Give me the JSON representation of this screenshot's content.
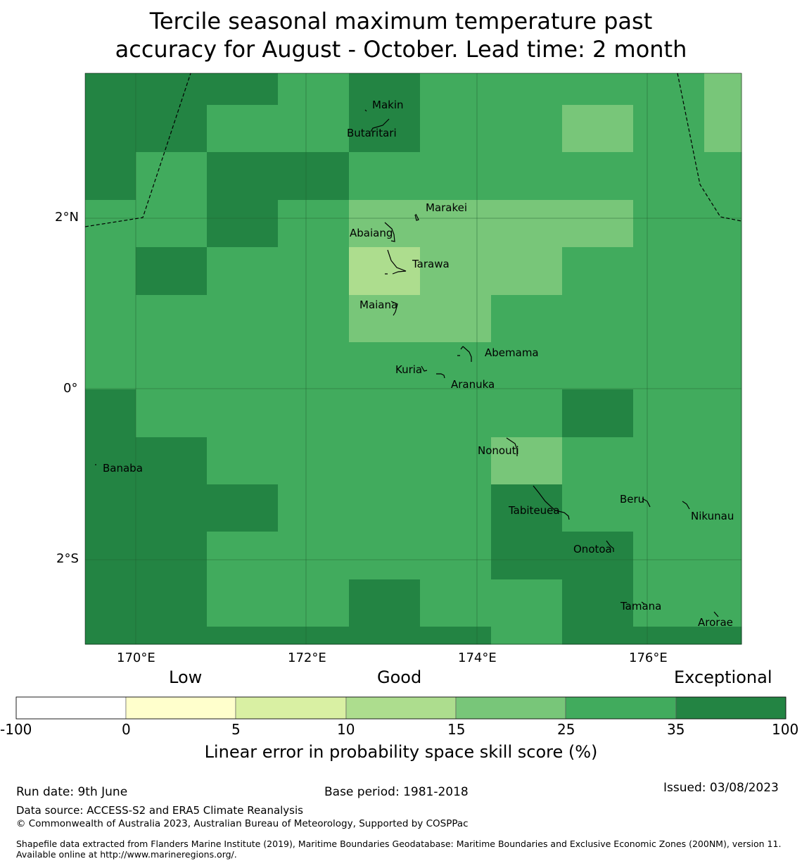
{
  "title": {
    "line1": "Tercile seasonal maximum temperature past",
    "line2": "accuracy for August - October. Lead time: 2 month"
  },
  "colors": {
    "bins": [
      "#ffffff",
      "#ffffcc",
      "#d9f0a3",
      "#addd8e",
      "#78c679",
      "#41ab5d",
      "#238443"
    ],
    "grid_line": "#1f5f30",
    "boundary": "#000000"
  },
  "axes": {
    "lon_ticks": [
      "170°E",
      "172°E",
      "174°E",
      "176°E"
    ],
    "lat_ticks": [
      "2°N",
      "0°",
      "2°S"
    ]
  },
  "grid": {
    "rows": [
      [
        6,
        6,
        6,
        5,
        6,
        5,
        5,
        5,
        5,
        4
      ],
      [
        6,
        6,
        5,
        5,
        6,
        5,
        5,
        4,
        5,
        4
      ],
      [
        6,
        5,
        6,
        6,
        5,
        5,
        5,
        5,
        5,
        5
      ],
      [
        5,
        5,
        6,
        5,
        4,
        4,
        4,
        4,
        5,
        5
      ],
      [
        5,
        6,
        5,
        5,
        3,
        4,
        4,
        5,
        5,
        5
      ],
      [
        5,
        5,
        5,
        5,
        4,
        4,
        5,
        5,
        5,
        5
      ],
      [
        5,
        5,
        5,
        5,
        5,
        5,
        5,
        5,
        5,
        5
      ],
      [
        6,
        5,
        5,
        5,
        5,
        5,
        5,
        6,
        5,
        5
      ],
      [
        6,
        6,
        5,
        5,
        5,
        5,
        4,
        5,
        5,
        5
      ],
      [
        6,
        6,
        6,
        5,
        5,
        5,
        6,
        5,
        5,
        5
      ],
      [
        6,
        6,
        5,
        5,
        5,
        5,
        6,
        6,
        5,
        5
      ],
      [
        6,
        6,
        5,
        5,
        6,
        5,
        5,
        6,
        5,
        5
      ],
      [
        6,
        6,
        6,
        6,
        6,
        6,
        5,
        6,
        6,
        6
      ]
    ]
  },
  "places": [
    {
      "name": "Makin"
    },
    {
      "name": "Butaritari"
    },
    {
      "name": "Marakei"
    },
    {
      "name": "Abaiang"
    },
    {
      "name": "Tarawa"
    },
    {
      "name": "Maiana"
    },
    {
      "name": "Abemama"
    },
    {
      "name": "Kuria"
    },
    {
      "name": "Aranuka"
    },
    {
      "name": "Nonouti"
    },
    {
      "name": "Banaba"
    },
    {
      "name": "Beru"
    },
    {
      "name": "Nikunau"
    },
    {
      "name": "Tabiteuea"
    },
    {
      "name": "Onotoa"
    },
    {
      "name": "Tamana"
    },
    {
      "name": "Arorae"
    }
  ],
  "legend": {
    "grades": [
      "Low",
      "Good",
      "Exceptional"
    ],
    "ticks": [
      "-100",
      "0",
      "5",
      "10",
      "15",
      "25",
      "35",
      "100"
    ],
    "label": "Linear error in probability space skill score (%)"
  },
  "footer": {
    "run_date": "Run date: 9th June",
    "base_period": "Base period: 1981-2018",
    "issued": "Issued: 03/08/2023",
    "data_source": "Data source: ACCESS-S2 and ERA5 Climate Reanalysis",
    "copyright": "© Commonwealth of Australia 2023, Australian Bureau of Meteorology, Supported by COSPPac",
    "shapefile": "Shapefile data extracted from Flanders Marine Institute (2019), Maritime Boundaries Geodatabase: Maritime Boundaries and Exclusive Economic Zones (200NM), version 11. Available online at http://www.marineregions.org/."
  }
}
